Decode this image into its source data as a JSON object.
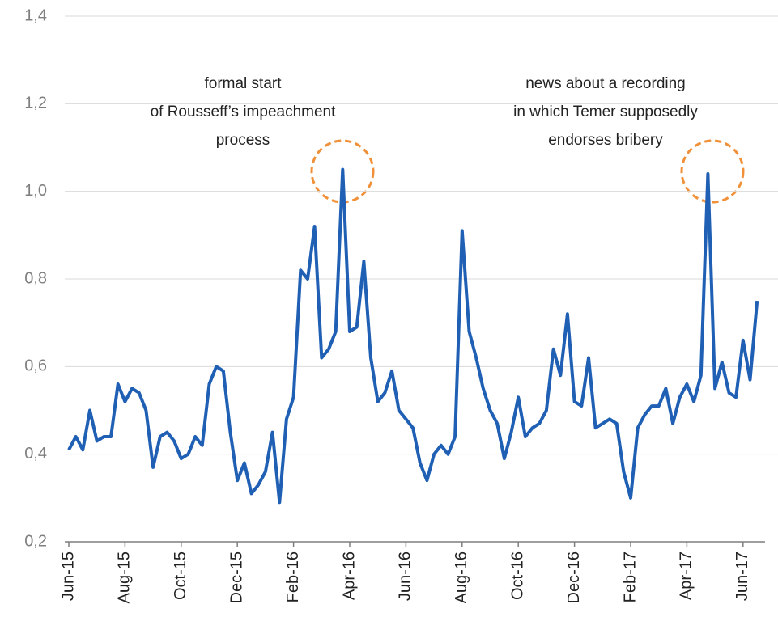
{
  "chart_data": {
    "type": "line",
    "categories": [
      "Jun-15",
      null,
      null,
      null,
      null,
      null,
      null,
      null,
      "Aug-15",
      null,
      null,
      null,
      null,
      null,
      null,
      null,
      "Oct-15",
      null,
      null,
      null,
      null,
      null,
      null,
      null,
      "Dec-15",
      null,
      null,
      null,
      null,
      null,
      null,
      null,
      "Feb-16",
      null,
      null,
      null,
      null,
      null,
      null,
      null,
      "Apr-16",
      null,
      null,
      null,
      null,
      null,
      null,
      null,
      "Jun-16",
      null,
      null,
      null,
      null,
      null,
      null,
      null,
      "Aug-16",
      null,
      null,
      null,
      null,
      null,
      null,
      null,
      "Oct-16",
      null,
      null,
      null,
      null,
      null,
      null,
      null,
      "Dec-16",
      null,
      null,
      null,
      null,
      null,
      null,
      null,
      "Feb-17",
      null,
      null,
      null,
      null,
      null,
      null,
      null,
      "Apr-17",
      null,
      null,
      null,
      null,
      null,
      null,
      null,
      "Jun-17",
      null,
      null
    ],
    "series": [
      {
        "color": "#1f5fb4",
        "values": [
          0.41,
          0.44,
          0.41,
          0.5,
          0.43,
          0.44,
          0.44,
          0.56,
          0.52,
          0.55,
          0.54,
          0.5,
          0.37,
          0.44,
          0.45,
          0.43,
          0.39,
          0.4,
          0.44,
          0.42,
          0.56,
          0.6,
          0.59,
          0.45,
          0.34,
          0.38,
          0.31,
          0.33,
          0.36,
          0.45,
          0.29,
          0.48,
          0.53,
          0.82,
          0.8,
          0.92,
          0.62,
          0.64,
          0.68,
          1.05,
          0.68,
          0.69,
          0.84,
          0.62,
          0.52,
          0.54,
          0.59,
          0.5,
          0.48,
          0.46,
          0.38,
          0.34,
          0.4,
          0.42,
          0.4,
          0.44,
          0.91,
          0.68,
          0.62,
          0.55,
          0.5,
          0.47,
          0.39,
          0.45,
          0.53,
          0.44,
          0.46,
          0.47,
          0.5,
          0.64,
          0.58,
          0.72,
          0.52,
          0.51,
          0.62,
          0.46,
          0.47,
          0.48,
          0.47,
          0.36,
          0.3,
          0.46,
          0.49,
          0.51,
          0.51,
          0.55,
          0.47,
          0.53,
          0.56,
          0.52,
          0.58,
          1.04,
          0.55,
          0.61,
          0.54,
          0.53,
          0.66,
          0.57,
          0.75
        ]
      }
    ],
    "ylim": [
      0.2,
      1.4
    ],
    "yticks": [
      {
        "value": 0.2,
        "label": "0,2"
      },
      {
        "value": 0.4,
        "label": "0,4"
      },
      {
        "value": 0.6,
        "label": "0,6"
      },
      {
        "value": 0.8,
        "label": "0,8"
      },
      {
        "value": 1.0,
        "label": "1,0"
      },
      {
        "value": 1.2,
        "label": "1,2"
      },
      {
        "value": 1.4,
        "label": "1,4"
      }
    ],
    "grid": true,
    "annotations": [
      [
        "formal start",
        "of Rousseff’s impeachment",
        "process"
      ],
      [
        "news about a recording",
        "in which Temer supposedly",
        "endorses  bribery"
      ]
    ]
  }
}
